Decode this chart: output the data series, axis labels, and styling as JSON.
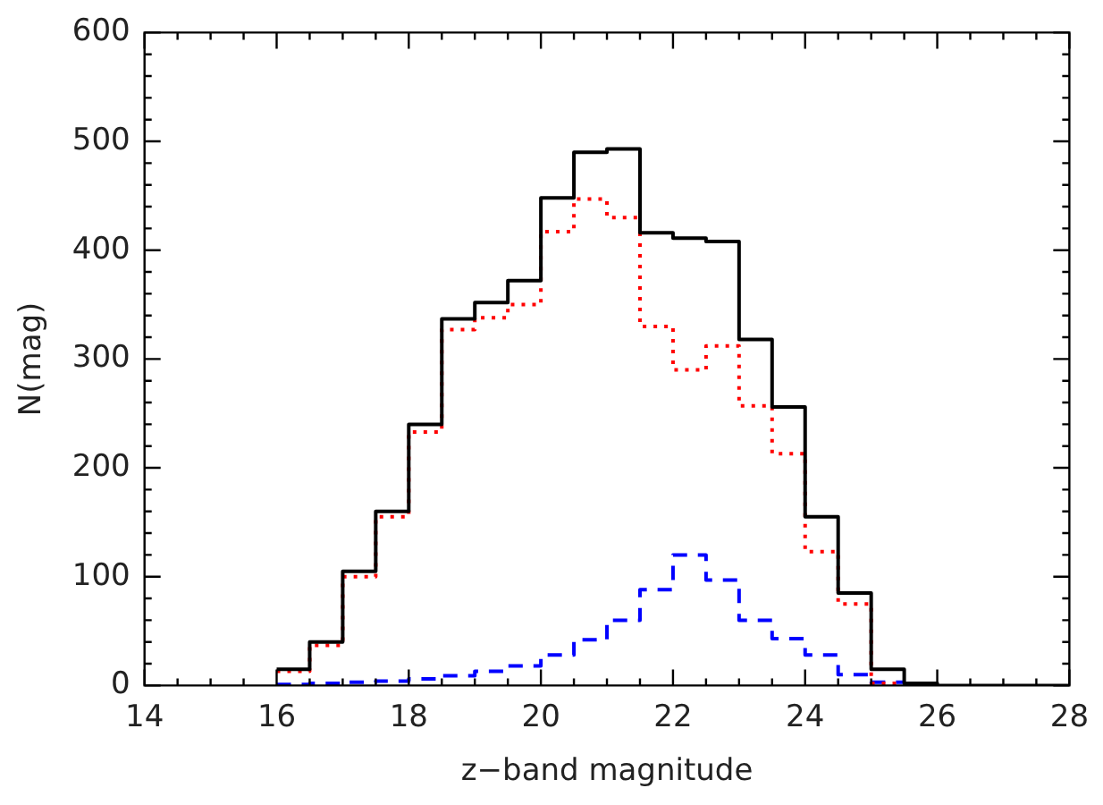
{
  "chart_data": {
    "type": "histogram",
    "xlabel": "z−band magnitude",
    "ylabel": "N(mag)",
    "bins": [
      16,
      16.5,
      17,
      17.5,
      18,
      18.5,
      19,
      19.5,
      20,
      20.5,
      21,
      21.5,
      22,
      22.5,
      23,
      23.5,
      24,
      24.5,
      25,
      25.5,
      26,
      26.5,
      27,
      27.5,
      28
    ],
    "series": [
      {
        "color": "#000000",
        "line_style": "solid",
        "values": [
          15,
          40,
          105,
          160,
          240,
          337,
          352,
          372,
          448,
          490,
          493,
          416,
          411,
          408,
          318,
          256,
          155,
          85,
          15,
          2,
          0,
          0,
          0,
          0
        ]
      },
      {
        "color": "#ff0000",
        "line_style": "dotted",
        "bins": [
          16,
          16.5,
          17,
          17.5,
          18,
          18.5,
          19,
          19.5,
          20,
          20.5,
          21,
          21.5,
          22,
          22.5,
          23,
          23.5,
          24,
          24.5,
          25,
          25.5
        ],
        "values": [
          13,
          37,
          100,
          155,
          233,
          327,
          338,
          350,
          417,
          447,
          430,
          330,
          290,
          312,
          257,
          213,
          123,
          75,
          2
        ]
      },
      {
        "color": "#0000ff",
        "line_style": "dashed",
        "bins": [
          16,
          16.5,
          17,
          17.5,
          18,
          18.5,
          19,
          19.5,
          20,
          20.5,
          21,
          21.5,
          22,
          22.5,
          23,
          23.5,
          24,
          24.5,
          25,
          25.5
        ],
        "values": [
          1,
          2,
          3,
          4,
          6,
          9,
          13,
          18,
          28,
          42,
          60,
          88,
          120,
          97,
          60,
          43,
          28,
          10,
          3
        ]
      }
    ],
    "xlim": [
      14,
      28
    ],
    "xticks": [
      14,
      16,
      18,
      20,
      22,
      24,
      26,
      28
    ],
    "ylim": [
      0,
      600
    ],
    "yticks": [
      0,
      100,
      200,
      300,
      400,
      500,
      600
    ],
    "grid": false,
    "legend": false
  }
}
